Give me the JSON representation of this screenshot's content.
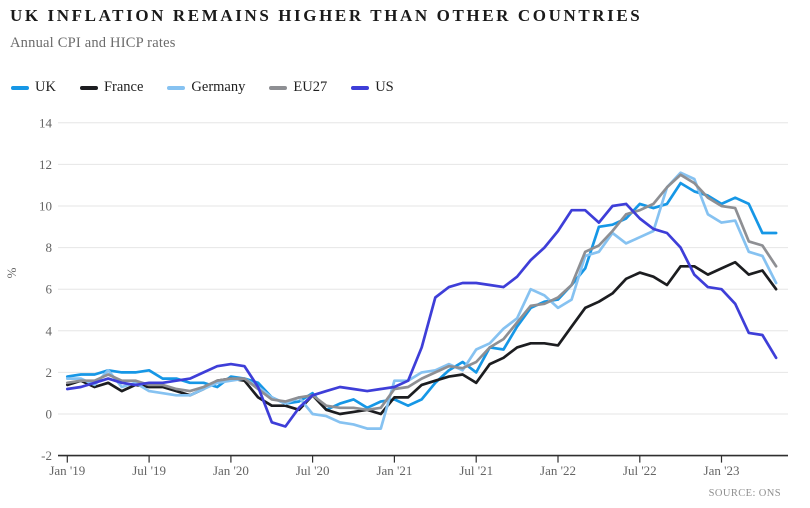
{
  "header": {
    "title": "UK INFLATION REMAINS HIGHER THAN OTHER COUNTRIES",
    "subtitle": "Annual CPI and HICP rates"
  },
  "source_label": "SOURCE: ONS",
  "chart_data": {
    "type": "line",
    "title": "UK inflation remains higher than other countries",
    "subtitle": "Annual CPI and HICP rates",
    "xlabel": "",
    "ylabel": "%",
    "ylim": [
      -2,
      14
    ],
    "yticks": [
      14,
      12,
      10,
      8,
      6,
      4,
      2,
      0,
      -2
    ],
    "grid": true,
    "legend_position": "top",
    "x_range": {
      "start": "Jan 2019",
      "end": "May 2023",
      "interval": "monthly",
      "n_points": 53
    },
    "x_tick_labels": [
      "Jan '19",
      "Jul '19",
      "Jan '20",
      "Jul '20",
      "Jan '21",
      "Jul '21",
      "Jan '22",
      "Jul '22",
      "Jan '23"
    ],
    "x_tick_indices": [
      0,
      6,
      12,
      18,
      24,
      30,
      36,
      42,
      48
    ],
    "series": [
      {
        "name": "UK",
        "color": "#1697e6",
        "values": [
          1.8,
          1.9,
          1.9,
          2.1,
          2.0,
          2.0,
          2.1,
          1.7,
          1.7,
          1.5,
          1.5,
          1.3,
          1.8,
          1.7,
          1.5,
          0.8,
          0.5,
          0.6,
          1.0,
          0.2,
          0.5,
          0.7,
          0.3,
          0.6,
          0.7,
          0.4,
          0.7,
          1.5,
          2.1,
          2.5,
          2.0,
          3.2,
          3.1,
          4.2,
          5.1,
          5.4,
          5.5,
          6.2,
          7.0,
          9.0,
          9.1,
          9.4,
          10.1,
          9.9,
          10.1,
          11.1,
          10.7,
          10.5,
          10.1,
          10.4,
          10.1,
          8.7,
          8.7
        ]
      },
      {
        "name": "France",
        "color": "#1c1d20",
        "values": [
          1.4,
          1.6,
          1.3,
          1.5,
          1.1,
          1.4,
          1.3,
          1.3,
          1.1,
          0.9,
          1.2,
          1.6,
          1.7,
          1.6,
          0.8,
          0.4,
          0.4,
          0.2,
          0.9,
          0.2,
          0.0,
          0.1,
          0.2,
          0.0,
          0.8,
          0.8,
          1.4,
          1.6,
          1.8,
          1.9,
          1.5,
          2.4,
          2.7,
          3.2,
          3.4,
          3.4,
          3.3,
          4.2,
          5.1,
          5.4,
          5.8,
          6.5,
          6.8,
          6.6,
          6.2,
          7.1,
          7.1,
          6.7,
          7.0,
          7.3,
          6.7,
          6.9,
          6.0
        ]
      },
      {
        "name": "Germany",
        "color": "#86c2f1",
        "values": [
          1.7,
          1.7,
          1.4,
          2.1,
          1.3,
          1.5,
          1.1,
          1.0,
          0.9,
          0.9,
          1.2,
          1.5,
          1.6,
          1.7,
          1.3,
          0.8,
          0.5,
          0.8,
          0.0,
          -0.1,
          -0.4,
          -0.5,
          -0.7,
          -0.7,
          1.6,
          1.6,
          2.0,
          2.1,
          2.4,
          2.1,
          3.1,
          3.4,
          4.1,
          4.6,
          6.0,
          5.7,
          5.1,
          5.5,
          7.6,
          7.8,
          8.7,
          8.2,
          8.5,
          8.8,
          10.9,
          11.6,
          11.3,
          9.6,
          9.2,
          9.3,
          7.8,
          7.6,
          6.3
        ]
      },
      {
        "name": "EU27",
        "color": "#8e8f93",
        "values": [
          1.5,
          1.6,
          1.6,
          1.9,
          1.6,
          1.6,
          1.4,
          1.4,
          1.2,
          1.1,
          1.3,
          1.6,
          1.7,
          1.7,
          1.2,
          0.7,
          0.6,
          0.8,
          0.9,
          0.4,
          0.3,
          0.3,
          0.2,
          0.3,
          1.2,
          1.3,
          1.7,
          2.0,
          2.3,
          2.2,
          2.5,
          3.2,
          3.6,
          4.4,
          5.2,
          5.3,
          5.6,
          6.2,
          7.8,
          8.1,
          8.8,
          9.6,
          9.8,
          10.1,
          10.9,
          11.5,
          11.1,
          10.4,
          10.0,
          9.9,
          8.3,
          8.1,
          7.1
        ]
      },
      {
        "name": "US",
        "color": "#3e3ed8",
        "values": [
          1.2,
          1.3,
          1.5,
          1.7,
          1.5,
          1.4,
          1.5,
          1.5,
          1.6,
          1.7,
          2.0,
          2.3,
          2.4,
          2.3,
          1.3,
          -0.4,
          -0.6,
          0.3,
          0.9,
          1.1,
          1.3,
          1.2,
          1.1,
          1.2,
          1.3,
          1.6,
          3.2,
          5.6,
          6.1,
          6.3,
          6.3,
          6.2,
          6.1,
          6.6,
          7.4,
          8.0,
          8.8,
          9.8,
          9.8,
          9.2,
          10.0,
          10.1,
          9.4,
          8.9,
          8.7,
          8.0,
          6.7,
          6.1,
          6.0,
          5.3,
          3.9,
          3.8,
          2.7
        ]
      }
    ]
  },
  "style": {
    "gridline_color": "#e6e6e6",
    "axis_color": "#2f2f2f",
    "tick_text_color": "#646464"
  }
}
